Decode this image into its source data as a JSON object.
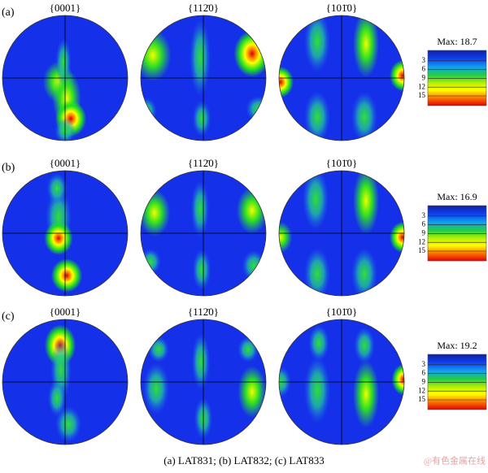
{
  "figure": {
    "rows": [
      {
        "label": "(a)",
        "titles": [
          "{0001}",
          "{112̄0}",
          "{101̄0}"
        ],
        "max_label": "Max: 18.7",
        "ticks": [
          3,
          6,
          9,
          12,
          15
        ]
      },
      {
        "label": "(b)",
        "titles": [
          "{0001}",
          "{112̄0}",
          "{101̄0}"
        ],
        "max_label": "Max: 16.9",
        "ticks": [
          3,
          6,
          9,
          12,
          15
        ]
      },
      {
        "label": "(c)",
        "titles": [
          "{0001}",
          "{112̄0}",
          "{101̄0}"
        ],
        "max_label": "Max: 19.2",
        "ticks": [
          3,
          6,
          9,
          12,
          15
        ]
      }
    ],
    "caption": "(a)  LAT831;   (b) LAT832; (c) LAT833",
    "watermark": "@有色金属在线"
  }
}
